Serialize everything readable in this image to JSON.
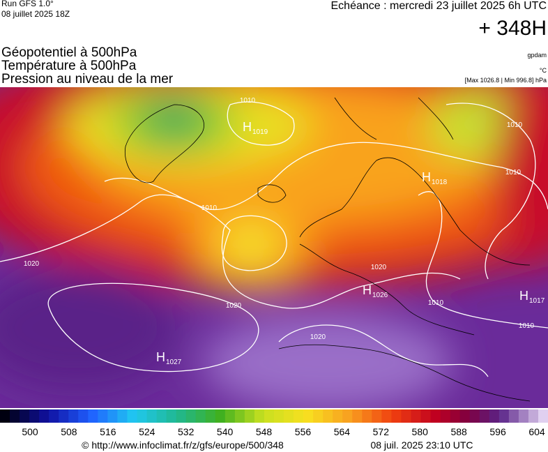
{
  "header": {
    "run": "Run GFS 1.0°",
    "run_date": "08 juillet 2025 18Z",
    "valid": "Echéance : mercredi 23 juillet 2025 6h UTC",
    "lead": "+ 348H",
    "fields": [
      "Géopotentiel à 500hPa",
      "Température à 500hPa",
      "Pression au niveau de la mer"
    ],
    "unit_geopotential": "gpdam",
    "unit_temperature": "°C",
    "pressure_range": "[Max 1026.8 | Min 996.8] hPa"
  },
  "map": {
    "highs": [
      {
        "letter": "H",
        "pressure": 1019
      },
      {
        "letter": "H",
        "pressure": 1018
      },
      {
        "letter": "H",
        "pressure": 1026
      },
      {
        "letter": "H",
        "pressure": 1017
      },
      {
        "letter": "H",
        "pressure": 1027
      }
    ],
    "isobar_labels": [
      1010,
      1010,
      1010,
      1010,
      1020,
      1020,
      1020,
      1020,
      1010,
      1010
    ]
  },
  "colorbar": {
    "ticks": [
      500,
      508,
      516,
      524,
      532,
      540,
      548,
      556,
      564,
      572,
      580,
      588,
      596,
      604
    ]
  },
  "footer": {
    "source": "© http://www.infoclimat.fr/z/gfs/europe/500/348",
    "generated": "08 juil. 2025 23:10 UTC"
  }
}
